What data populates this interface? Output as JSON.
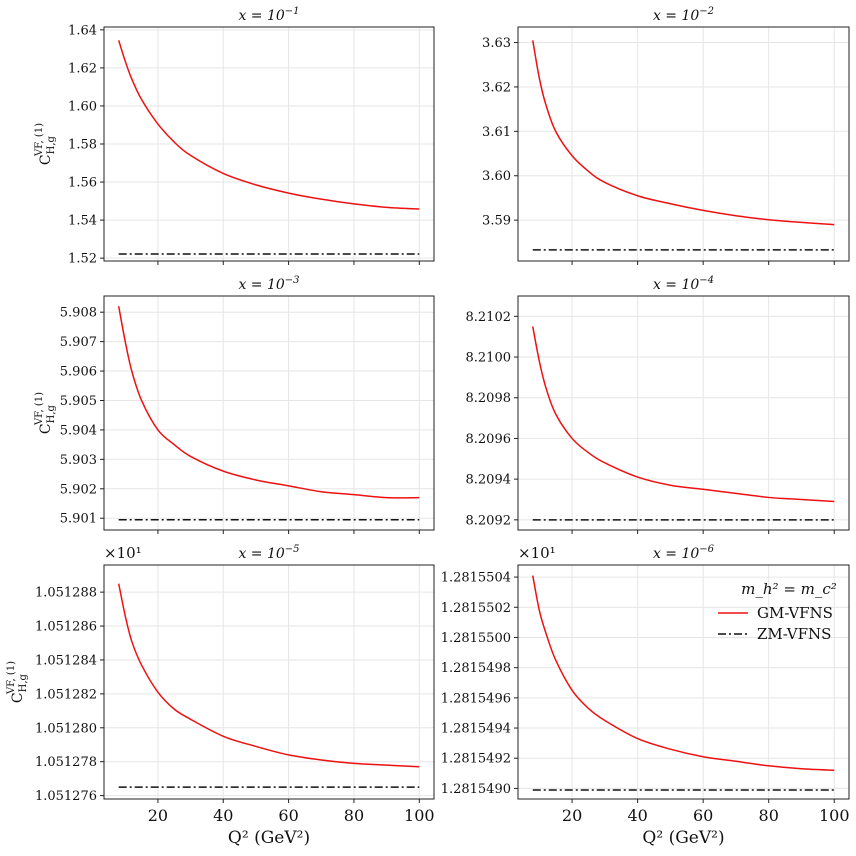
{
  "figure": {
    "xlabel": "Q² (GeV²)",
    "ylabel": "C_{H,g}^{VF,(1)}",
    "legend_title": "m_h² = m_c²"
  },
  "chart_data": [
    {
      "type": "line",
      "title": "x = 10^{-1}",
      "title_base": "x = 10",
      "title_exp": "−1",
      "ylim": [
        1.5185,
        1.6415
      ],
      "yticks": [
        1.52,
        1.54,
        1.56,
        1.58,
        1.6,
        1.62,
        1.64
      ],
      "ytick_labels": [
        "1.52",
        "1.54",
        "1.56",
        "1.58",
        "1.60",
        "1.62",
        "1.64"
      ],
      "offset": "",
      "ylabel_shown": true,
      "xticklabels_shown": false,
      "series": [
        {
          "name": "GM-VFNS",
          "x": [
            8,
            10,
            12,
            15,
            20,
            25,
            30,
            40,
            50,
            60,
            70,
            80,
            90,
            100
          ],
          "y": [
            1.6345,
            1.6235,
            1.6142,
            1.6034,
            1.5905,
            1.581,
            1.574,
            1.5645,
            1.5585,
            1.5542,
            1.551,
            1.5485,
            1.5467,
            1.5458
          ]
        },
        {
          "name": "ZM-VFNS",
          "x": [
            8,
            100
          ],
          "y": [
            1.5222,
            1.5222
          ]
        }
      ]
    },
    {
      "type": "line",
      "title": "x = 10^{-2}",
      "title_base": "x = 10",
      "title_exp": "−2",
      "ylim": [
        3.5808,
        3.6335
      ],
      "yticks": [
        3.59,
        3.6,
        3.61,
        3.62,
        3.63
      ],
      "ytick_labels": [
        "3.59",
        "3.60",
        "3.61",
        "3.62",
        "3.63"
      ],
      "offset": "",
      "ylabel_shown": false,
      "xticklabels_shown": false,
      "series": [
        {
          "name": "GM-VFNS",
          "x": [
            8,
            10,
            12,
            15,
            20,
            25,
            30,
            40,
            50,
            60,
            70,
            80,
            90,
            100
          ],
          "y": [
            3.6305,
            3.622,
            3.616,
            3.61,
            3.6045,
            3.601,
            3.5985,
            3.5955,
            3.5937,
            3.5922,
            3.591,
            3.5901,
            3.5895,
            3.589
          ]
        },
        {
          "name": "ZM-VFNS",
          "x": [
            8,
            100
          ],
          "y": [
            3.5833,
            3.5833
          ]
        }
      ]
    },
    {
      "type": "line",
      "title": "x = 10^{-3}",
      "title_base": "x = 10",
      "title_exp": "−3",
      "ylim": [
        5.9006,
        5.90855
      ],
      "yticks": [
        5.901,
        5.902,
        5.903,
        5.904,
        5.905,
        5.906,
        5.907,
        5.908
      ],
      "ytick_labels": [
        "5.901",
        "5.902",
        "5.903",
        "5.904",
        "5.905",
        "5.906",
        "5.907",
        "5.908"
      ],
      "offset": "",
      "ylabel_shown": true,
      "xticklabels_shown": false,
      "series": [
        {
          "name": "GM-VFNS",
          "x": [
            8,
            10,
            12,
            15,
            20,
            25,
            30,
            40,
            50,
            60,
            70,
            80,
            90,
            100
          ],
          "y": [
            5.9082,
            5.907,
            5.906,
            5.905,
            5.904,
            5.9035,
            5.9031,
            5.9026,
            5.9023,
            5.9021,
            5.9019,
            5.9018,
            5.9017,
            5.9017
          ]
        },
        {
          "name": "ZM-VFNS",
          "x": [
            8,
            100
          ],
          "y": [
            5.90095,
            5.90095
          ]
        }
      ]
    },
    {
      "type": "line",
      "title": "x = 10^{-4}",
      "title_base": "x = 10",
      "title_exp": "−4",
      "ylim": [
        8.20915,
        8.2103
      ],
      "yticks": [
        8.2092,
        8.2094,
        8.2096,
        8.2098,
        8.21,
        8.2102
      ],
      "ytick_labels": [
        "8.2092",
        "8.2094",
        "8.2096",
        "8.2098",
        "8.2100",
        "8.2102"
      ],
      "offset": "",
      "ylabel_shown": false,
      "xticklabels_shown": false,
      "series": [
        {
          "name": "GM-VFNS",
          "x": [
            8,
            10,
            12,
            15,
            20,
            25,
            30,
            40,
            50,
            60,
            70,
            80,
            90,
            100
          ],
          "y": [
            8.21015,
            8.20998,
            8.20985,
            8.20972,
            8.2096,
            8.20953,
            8.20948,
            8.20941,
            8.20937,
            8.20935,
            8.20933,
            8.20931,
            8.2093,
            8.20929
          ]
        },
        {
          "name": "ZM-VFNS",
          "x": [
            8,
            100
          ],
          "y": [
            8.2092,
            8.2092
          ]
        }
      ]
    },
    {
      "type": "line",
      "title": "x = 10^{-5}",
      "title_base": "x = 10",
      "title_exp": "−5",
      "ylim": [
        1.0512758,
        1.0512896
      ],
      "yticks": [
        1.051276,
        1.051278,
        1.05128,
        1.051282,
        1.051284,
        1.051286,
        1.051288
      ],
      "ytick_labels": [
        "1.051276",
        "1.051278",
        "1.051280",
        "1.051282",
        "1.051284",
        "1.051286",
        "1.051288"
      ],
      "offset": "×10¹",
      "ylabel_shown": true,
      "xticklabels_shown": true,
      "series": [
        {
          "name": "GM-VFNS",
          "x": [
            8,
            10,
            12,
            15,
            20,
            25,
            30,
            40,
            50,
            60,
            70,
            80,
            90,
            100
          ],
          "y": [
            1.0512885,
            1.0512866,
            1.0512851,
            1.0512837,
            1.0512821,
            1.0512811,
            1.0512805,
            1.0512795,
            1.0512789,
            1.0512784,
            1.0512781,
            1.0512779,
            1.0512778,
            1.0512777
          ]
        },
        {
          "name": "ZM-VFNS",
          "x": [
            8,
            100
          ],
          "y": [
            1.0512765,
            1.0512765
          ]
        }
      ]
    },
    {
      "type": "line",
      "title": "x = 10^{-6}",
      "title_base": "x = 10",
      "title_exp": "−6",
      "ylim": [
        1.28154893,
        1.28155048
      ],
      "yticks": [
        1.281549,
        1.2815492,
        1.2815494,
        1.2815496,
        1.2815498,
        1.28155,
        1.2815502,
        1.2815504
      ],
      "ytick_labels": [
        "1.2815490",
        "1.2815492",
        "1.2815494",
        "1.2815496",
        "1.2815498",
        "1.2815500",
        "1.2815502",
        "1.2815504"
      ],
      "offset": "×10¹",
      "ylabel_shown": false,
      "xticklabels_shown": true,
      "legend": {
        "location": "upper right",
        "title": "m_h² = m_c²",
        "entries": [
          "GM-VFNS",
          "ZM-VFNS"
        ]
      },
      "series": [
        {
          "name": "GM-VFNS",
          "x": [
            8,
            10,
            12,
            15,
            20,
            25,
            30,
            40,
            50,
            60,
            70,
            80,
            90,
            100
          ],
          "y": [
            1.28155041,
            1.28155018,
            1.28155003,
            1.28154985,
            1.28154965,
            1.28154953,
            1.28154945,
            1.28154933,
            1.28154926,
            1.28154921,
            1.28154918,
            1.28154915,
            1.28154913,
            1.28154912
          ]
        },
        {
          "name": "ZM-VFNS",
          "x": [
            8,
            100
          ],
          "y": [
            1.28154899,
            1.28154899
          ]
        }
      ]
    }
  ],
  "shared_x": {
    "xlim": [
      3.5,
      104.5
    ],
    "xticks": [
      20,
      40,
      60,
      80,
      100
    ],
    "xtick_labels": [
      "20",
      "40",
      "60",
      "80",
      "100"
    ]
  },
  "colors": {
    "gm_vfns": "#ee1111",
    "zm_vfns": "#111111",
    "grid": "#e6e6e6",
    "axes": "#222222"
  }
}
